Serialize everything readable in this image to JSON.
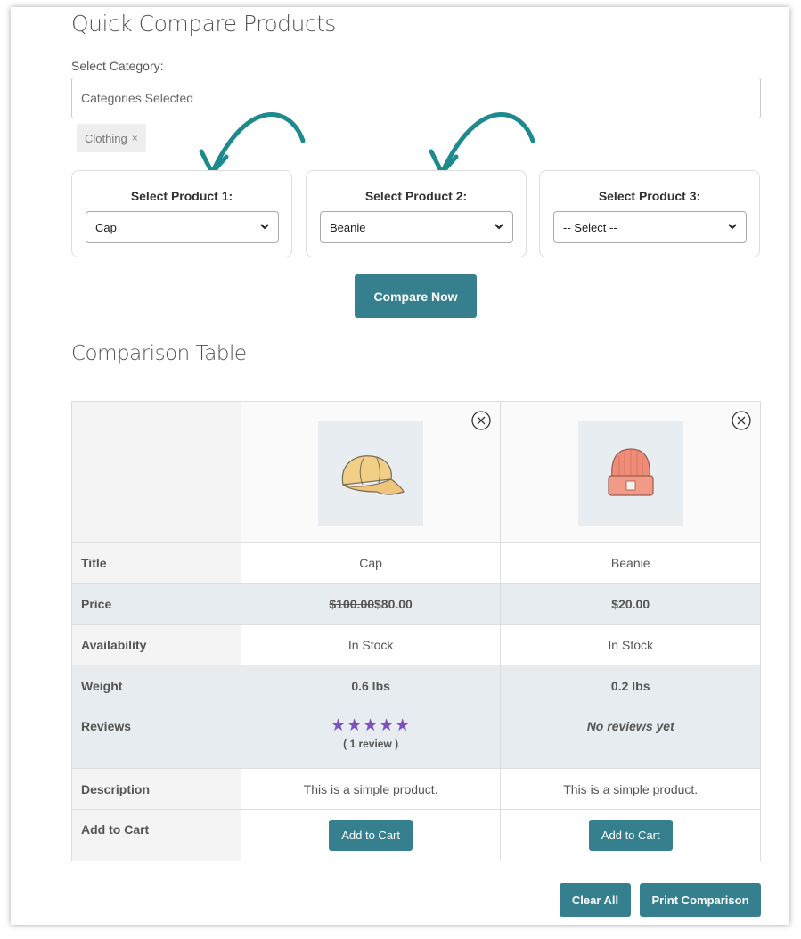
{
  "page": {
    "title": "Quick Compare Products",
    "category_label": "Select Category:",
    "category_placeholder": "Categories Selected",
    "selected_tag": "Clothing",
    "tag_remove": "×"
  },
  "selectors": [
    {
      "label": "Select Product 1:",
      "value": "Cap"
    },
    {
      "label": "Select Product 2:",
      "value": "Beanie"
    },
    {
      "label": "Select Product 3:",
      "value": "-- Select --"
    }
  ],
  "compare_button": "Compare Now",
  "comparison": {
    "title": "Comparison Table",
    "rows": {
      "title": "Title",
      "price": "Price",
      "availability": "Availability",
      "weight": "Weight",
      "reviews": "Reviews",
      "description": "Description",
      "add_to_cart": "Add to Cart"
    },
    "products": [
      {
        "image_icon": "cap-image",
        "title": "Cap",
        "price_old": "$100.00",
        "price": "$80.00",
        "availability": "In Stock",
        "weight": "0.6 lbs",
        "stars": "★★★★★",
        "rating": 5,
        "review_count": "( 1 review )",
        "description": "This is a simple product.",
        "cart_label": "Add to Cart"
      },
      {
        "image_icon": "beanie-image",
        "title": "Beanie",
        "price": "$20.00",
        "availability": "In Stock",
        "weight": "0.2 lbs",
        "reviews_text": "No reviews yet",
        "description": "This is a simple product.",
        "cart_label": "Add to Cart"
      }
    ]
  },
  "footer": {
    "clear_all": "Clear All",
    "print": "Print Comparison"
  },
  "colors": {
    "accent": "#357f8e",
    "arrow": "#1f8a8e",
    "stars": "#7d4fbf"
  }
}
